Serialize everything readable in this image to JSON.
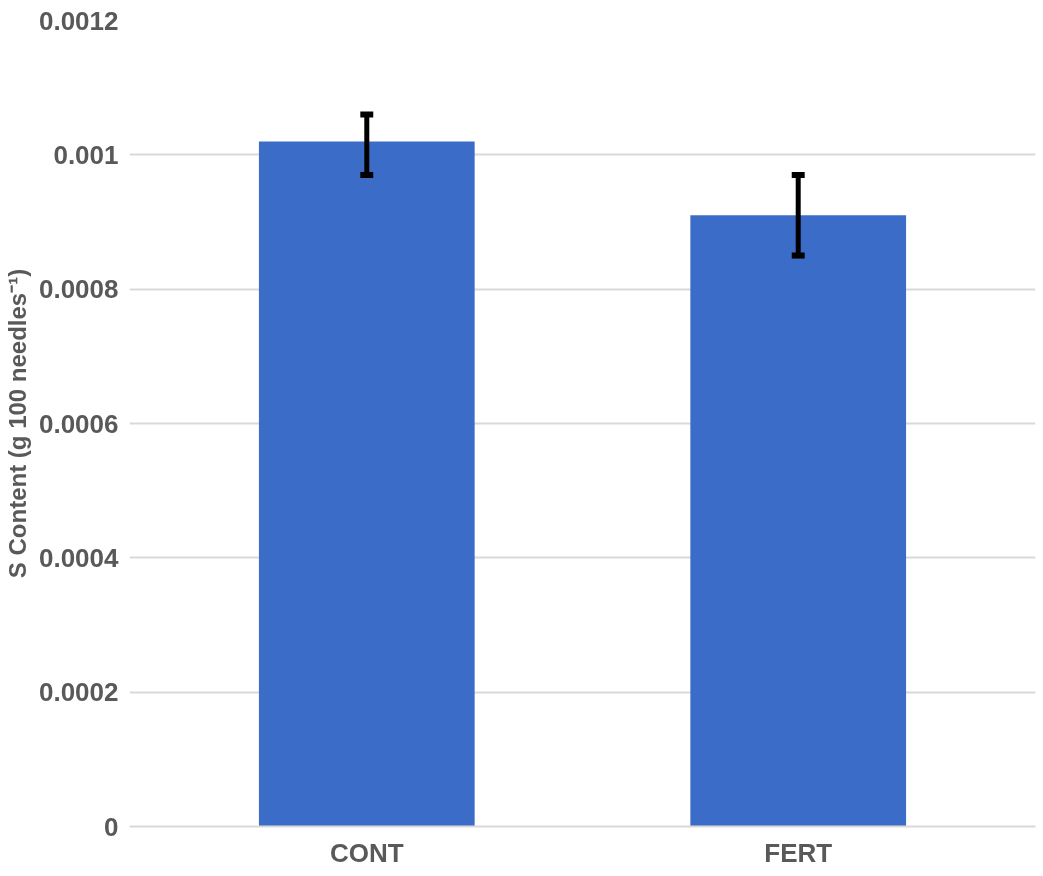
{
  "chart_data": {
    "type": "bar",
    "ylabel": "S Content (g 100 needles⁻¹)",
    "categories": [
      "CONT",
      "FERT"
    ],
    "values": [
      0.00102,
      0.00091
    ],
    "errors": [
      [
        0.00097,
        0.00106
      ],
      [
        0.00085,
        0.00097
      ]
    ],
    "color": "#3b6cc8",
    "ylim": [
      0,
      0.0012
    ],
    "yticks": [
      {
        "value": 0,
        "label": "0"
      },
      {
        "value": 0.0002,
        "label": "0.0002"
      },
      {
        "value": 0.0004,
        "label": "0.0004"
      },
      {
        "value": 0.0006,
        "label": "0.0006"
      },
      {
        "value": 0.0008,
        "label": "0.0008"
      },
      {
        "value": 0.001,
        "label": "0.001"
      },
      {
        "value": 0.0012,
        "label": "0.0012"
      }
    ],
    "grid": "y"
  }
}
